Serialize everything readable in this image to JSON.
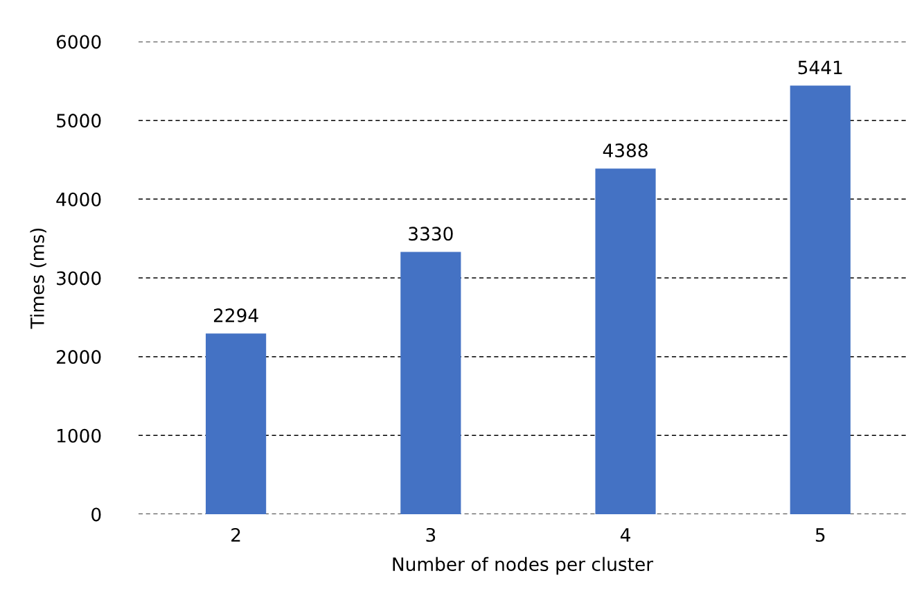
{
  "chart_data": {
    "type": "bar",
    "xlabel": "Number of nodes per cluster",
    "ylabel": "Times (ms)",
    "categories": [
      "2",
      "3",
      "4",
      "5"
    ],
    "values": [
      2294,
      3330,
      4388,
      5441
    ],
    "color": "#4472c4",
    "ylim": [
      0,
      6000
    ],
    "yticks": [
      0,
      1000,
      2000,
      3000,
      4000,
      5000,
      6000
    ],
    "grid": "y",
    "data_labels": true
  }
}
